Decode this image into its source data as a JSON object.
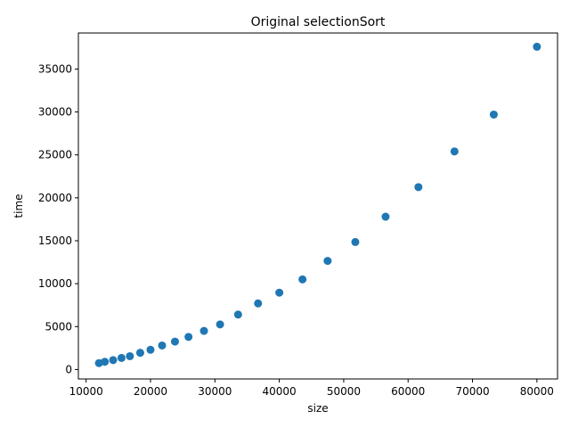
{
  "chart_data": {
    "type": "scatter",
    "title": "Original selectionSort",
    "xlabel": "size",
    "ylabel": "time",
    "xlim": [
      8800,
      83200
    ],
    "ylim": [
      -1100,
      39200
    ],
    "xticks": [
      10000,
      20000,
      30000,
      40000,
      50000,
      60000,
      70000,
      80000
    ],
    "xtick_labels": [
      "10000",
      "20000",
      "30000",
      "40000",
      "50000",
      "60000",
      "70000",
      "80000"
    ],
    "yticks": [
      0,
      5000,
      10000,
      15000,
      20000,
      25000,
      30000,
      35000
    ],
    "ytick_labels": [
      "0",
      "5000",
      "10000",
      "15000",
      "20000",
      "25000",
      "30000",
      "35000"
    ],
    "grid": false,
    "marker_color": "#1f77b4",
    "series": [
      {
        "x": [
          12000,
          12900,
          14200,
          15500,
          16800,
          18400,
          20000,
          21800,
          23800,
          25900,
          28300,
          30800,
          33600,
          36700,
          40000,
          43600,
          47500,
          51800,
          56500,
          61600,
          67200,
          73300,
          80000
        ],
        "y": [
          750,
          900,
          1100,
          1350,
          1550,
          1950,
          2300,
          2800,
          3250,
          3800,
          4500,
          5250,
          6400,
          7700,
          8950,
          10500,
          12650,
          14850,
          17800,
          21250,
          25400,
          29700,
          37600
        ]
      }
    ]
  }
}
